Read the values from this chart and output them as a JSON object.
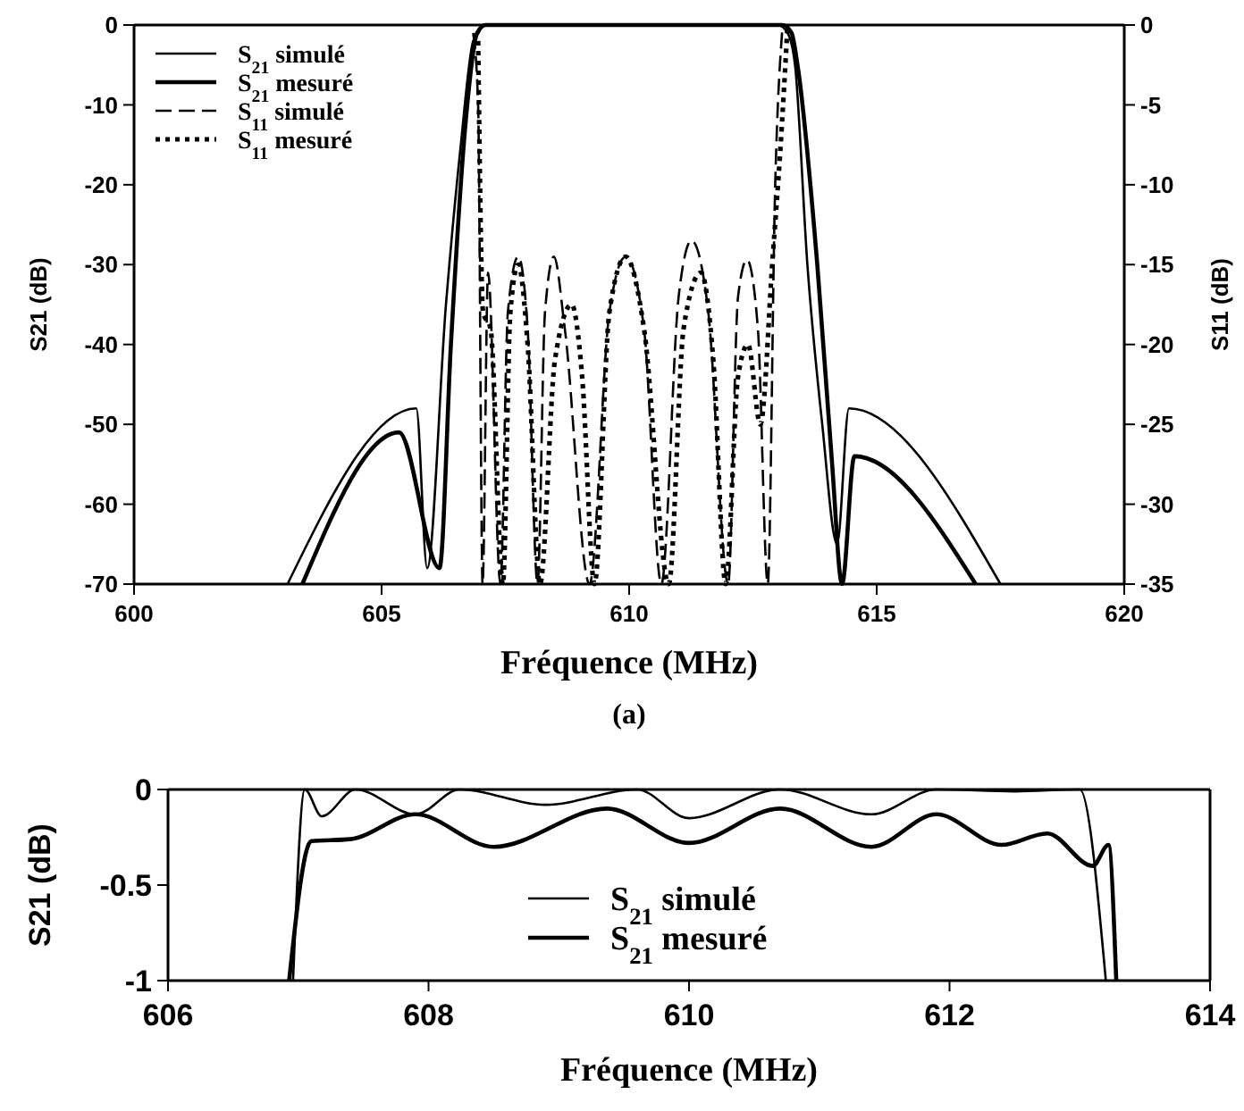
{
  "chart_data": [
    {
      "type": "line",
      "xlabel": "Fréquence (MHz)",
      "ylabel": "S21 (dB)",
      "y2label": "S11 (dB)",
      "annotations": [
        "(a)"
      ],
      "xlim": [
        600,
        620
      ],
      "xticks": [
        600,
        605,
        610,
        615,
        620
      ],
      "ylim": [
        -70,
        0
      ],
      "yticks": [
        0,
        -10,
        -20,
        -30,
        -40,
        -50,
        -60,
        -70
      ],
      "y2lim": [
        -35,
        0
      ],
      "y2ticks": [
        0,
        -5,
        -10,
        -15,
        -20,
        -25,
        -30,
        -35
      ],
      "legend": "top left",
      "grid": false,
      "series": [
        {
          "name": "S$_{21}$ simulé",
          "color": "#000000",
          "line_style": "solid",
          "x": [
            603.1,
            605.7,
            605.92,
            606.3,
            606.6,
            606.85,
            606.96,
            607.05,
            613.0,
            613.2,
            613.35,
            613.6,
            613.9,
            614.2,
            614.44,
            617.5
          ],
          "values": [
            -70,
            -48,
            -68,
            -35,
            -15,
            -2,
            -1,
            0,
            0,
            -1,
            -5,
            -30,
            -50,
            -65,
            -48,
            -70
          ]
        },
        {
          "name": "S$_{21}$ mesuré",
          "color": "#000000",
          "line_style": "solid",
          "x": [
            603.4,
            605.35,
            606.17,
            606.4,
            606.7,
            606.93,
            607.1,
            613.1,
            613.28,
            613.4,
            613.8,
            614.1,
            614.3,
            614.55,
            617.0
          ],
          "values": [
            -70,
            -51,
            -68,
            -40,
            -12,
            -1,
            0,
            0,
            -1,
            -5,
            -30,
            -55,
            -70,
            -54,
            -70
          ]
        },
        {
          "name": "S$_{11}$ simulé",
          "color": "#000000",
          "line_style": "dashed",
          "axis": "y2",
          "x": [
            606.85,
            606.95,
            607.04,
            607.15,
            607.4,
            607.55,
            607.76,
            607.95,
            608.15,
            608.3,
            608.48,
            608.7,
            609.2,
            609.6,
            609.93,
            610.3,
            610.65,
            611.0,
            611.26,
            611.6,
            612.0,
            612.2,
            612.38,
            612.6,
            612.8,
            612.95,
            613.1
          ],
          "values": [
            -0.5,
            -5,
            -35,
            -15.5,
            -35,
            -18,
            -14.5,
            -19,
            -35,
            -18,
            -14.5,
            -19,
            -35,
            -18,
            -14.5,
            -19,
            -35,
            -17,
            -13.5,
            -18,
            -35,
            -17,
            -14.7,
            -19,
            -35,
            -10,
            0
          ]
        },
        {
          "name": "S$_{11}$ mesuré",
          "color": "#000000",
          "line_style": "dotted",
          "axis": "y2",
          "x": [
            606.95,
            607.05,
            607.2,
            607.45,
            607.6,
            607.76,
            607.95,
            608.2,
            608.5,
            608.84,
            609.05,
            609.3,
            609.6,
            609.93,
            610.3,
            610.8,
            611.1,
            611.45,
            611.7,
            611.95,
            612.2,
            612.4,
            612.65,
            612.9,
            613.05,
            613.2
          ],
          "values": [
            -1,
            -18,
            -19,
            -35,
            -18,
            -15,
            -20,
            -35,
            -21,
            -17.5,
            -22,
            -35,
            -18,
            -14.5,
            -19,
            -35,
            -19,
            -15.5,
            -21,
            -35,
            -22,
            -20,
            -25,
            -14.5,
            -8,
            0
          ]
        }
      ]
    },
    {
      "type": "line",
      "xlabel": "Fréquence (MHz)",
      "ylabel": "S21 (dB)",
      "xlim": [
        606,
        614
      ],
      "xticks": [
        606,
        608,
        610,
        612,
        614
      ],
      "ylim": [
        -1,
        0
      ],
      "yticks": [
        0,
        -0.5,
        -1
      ],
      "legend": "bottom",
      "grid": false,
      "series": [
        {
          "name": "S$_{21}$ simulé",
          "color": "#000000",
          "line_style": "solid",
          "x": [
            606.96,
            607.05,
            607.18,
            607.44,
            607.9,
            608.24,
            608.9,
            609.6,
            610.0,
            610.7,
            611.4,
            611.9,
            612.5,
            613.0,
            613.2
          ],
          "values": [
            -1,
            0,
            -0.14,
            0,
            -0.13,
            0,
            -0.08,
            0,
            -0.15,
            0,
            -0.13,
            0,
            -0.01,
            0,
            -1
          ]
        },
        {
          "name": "S$_{21}$ mesuré",
          "color": "#000000",
          "line_style": "solid",
          "x": [
            606.93,
            607.1,
            607.4,
            607.9,
            608.5,
            609.37,
            610.0,
            610.7,
            611.4,
            611.9,
            612.4,
            612.75,
            613.1,
            613.22,
            613.28
          ],
          "values": [
            -1,
            -0.27,
            -0.26,
            -0.13,
            -0.3,
            -0.1,
            -0.28,
            -0.1,
            -0.3,
            -0.13,
            -0.29,
            -0.23,
            -0.4,
            -0.29,
            -1
          ]
        }
      ]
    }
  ]
}
